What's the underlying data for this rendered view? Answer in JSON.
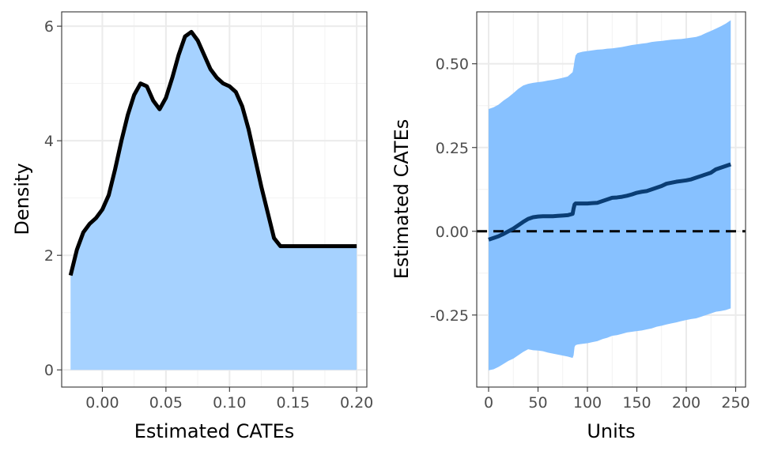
{
  "chart_data": [
    {
      "type": "area",
      "xlabel": "Estimated CATEs",
      "ylabel": "Density",
      "xlim": [
        -0.032,
        0.208
      ],
      "ylim": [
        -0.3,
        6.25
      ],
      "xticks": [
        0.0,
        0.05,
        0.1,
        0.15,
        0.2
      ],
      "xtick_labels": [
        "0.00",
        "0.05",
        "0.10",
        "0.15",
        "0.20"
      ],
      "yticks": [
        0,
        2,
        4,
        6
      ],
      "ytick_labels": [
        "0",
        "2",
        "4",
        "6"
      ],
      "grid": true,
      "fill_color": "#a6d2ff",
      "line_color": "#000000",
      "x": [
        -0.025,
        -0.02,
        -0.015,
        -0.01,
        -0.005,
        0.0,
        0.005,
        0.01,
        0.015,
        0.02,
        0.025,
        0.03,
        0.035,
        0.04,
        0.045,
        0.05,
        0.055,
        0.06,
        0.065,
        0.07,
        0.075,
        0.08,
        0.085,
        0.09,
        0.095,
        0.1,
        0.105,
        0.11,
        0.115,
        0.12,
        0.125,
        0.13,
        0.135,
        0.14,
        0.145,
        0.15,
        0.155,
        0.16,
        0.165,
        0.17,
        0.175,
        0.18,
        0.185,
        0.19,
        0.195,
        0.2
      ],
      "y": [
        1.65,
        2.1,
        2.4,
        2.55,
        2.65,
        2.8,
        3.05,
        3.5,
        4.0,
        4.45,
        4.8,
        5.0,
        4.95,
        4.7,
        4.55,
        4.75,
        5.1,
        5.5,
        5.82,
        5.9,
        5.75,
        5.5,
        5.25,
        5.1,
        5.0,
        4.95,
        4.85,
        4.6,
        4.2,
        3.7,
        3.2,
        2.75,
        2.3,
        2.16,
        2.16,
        2.16,
        2.16,
        2.16,
        2.16,
        2.16,
        2.16,
        2.16,
        2.16,
        2.16,
        2.16,
        2.16
      ]
    },
    {
      "type": "line",
      "xlabel": "Units",
      "ylabel": "Estimated CATEs",
      "xlim": [
        -12,
        260
      ],
      "ylim": [
        -0.465,
        0.655
      ],
      "xticks": [
        0,
        50,
        100,
        150,
        200,
        250
      ],
      "xtick_labels": [
        "0",
        "50",
        "100",
        "150",
        "200",
        "250"
      ],
      "yticks": [
        -0.25,
        0.0,
        0.25,
        0.5
      ],
      "ytick_labels": [
        "-0.25",
        "0.00",
        "0.25",
        "0.50"
      ],
      "grid": true,
      "reference_line": 0.0,
      "band_color": "#87c1ff",
      "line_color": "#0a3d74",
      "x": [
        0,
        5,
        10,
        15,
        20,
        25,
        30,
        35,
        40,
        45,
        50,
        55,
        60,
        65,
        70,
        75,
        80,
        85,
        86,
        87,
        88,
        90,
        95,
        100,
        105,
        110,
        115,
        120,
        125,
        130,
        135,
        140,
        145,
        150,
        155,
        160,
        165,
        170,
        175,
        180,
        185,
        190,
        195,
        200,
        205,
        210,
        215,
        220,
        225,
        230,
        235,
        240,
        245
      ],
      "estimate": [
        -0.025,
        -0.02,
        -0.015,
        -0.008,
        0.0,
        0.008,
        0.018,
        0.028,
        0.037,
        0.042,
        0.044,
        0.045,
        0.045,
        0.045,
        0.046,
        0.047,
        0.048,
        0.052,
        0.068,
        0.08,
        0.083,
        0.083,
        0.083,
        0.083,
        0.084,
        0.085,
        0.09,
        0.095,
        0.1,
        0.101,
        0.103,
        0.106,
        0.11,
        0.115,
        0.118,
        0.12,
        0.125,
        0.13,
        0.135,
        0.142,
        0.145,
        0.148,
        0.15,
        0.152,
        0.155,
        0.16,
        0.165,
        0.17,
        0.175,
        0.185,
        0.19,
        0.195,
        0.2
      ],
      "lower": [
        -0.415,
        -0.412,
        -0.405,
        -0.396,
        -0.387,
        -0.38,
        -0.37,
        -0.36,
        -0.352,
        -0.355,
        -0.356,
        -0.358,
        -0.362,
        -0.365,
        -0.368,
        -0.371,
        -0.374,
        -0.378,
        -0.37,
        -0.345,
        -0.34,
        -0.338,
        -0.336,
        -0.334,
        -0.331,
        -0.328,
        -0.322,
        -0.318,
        -0.312,
        -0.31,
        -0.306,
        -0.302,
        -0.3,
        -0.298,
        -0.296,
        -0.293,
        -0.29,
        -0.285,
        -0.282,
        -0.278,
        -0.275,
        -0.272,
        -0.268,
        -0.265,
        -0.262,
        -0.26,
        -0.255,
        -0.25,
        -0.245,
        -0.24,
        -0.238,
        -0.235,
        -0.23
      ],
      "upper": [
        0.365,
        0.37,
        0.378,
        0.39,
        0.4,
        0.412,
        0.425,
        0.435,
        0.44,
        0.443,
        0.445,
        0.447,
        0.45,
        0.452,
        0.455,
        0.458,
        0.462,
        0.475,
        0.49,
        0.51,
        0.525,
        0.532,
        0.536,
        0.538,
        0.54,
        0.542,
        0.543,
        0.545,
        0.546,
        0.548,
        0.55,
        0.553,
        0.556,
        0.558,
        0.56,
        0.562,
        0.565,
        0.567,
        0.568,
        0.57,
        0.572,
        0.573,
        0.574,
        0.576,
        0.578,
        0.58,
        0.585,
        0.592,
        0.598,
        0.605,
        0.612,
        0.62,
        0.63
      ]
    }
  ]
}
